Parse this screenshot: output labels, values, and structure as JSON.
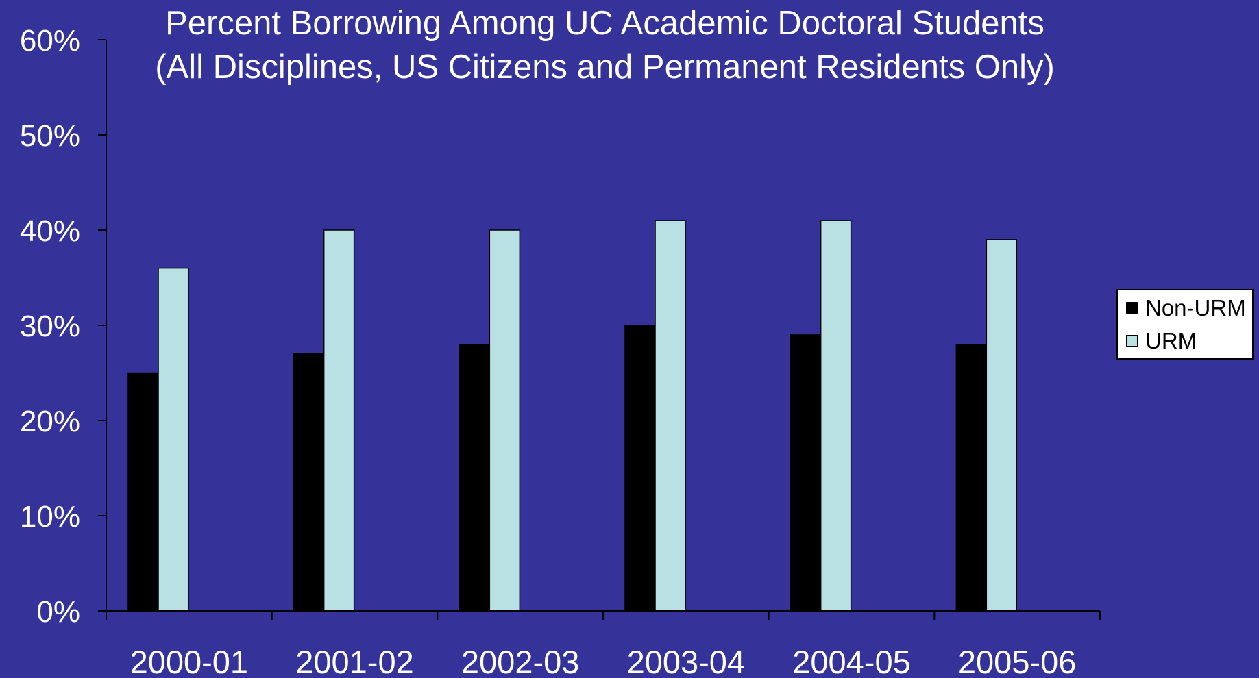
{
  "chart_data": {
    "type": "bar",
    "title": "Percent Borrowing Among UC Academic Doctoral Students",
    "subtitle": "(All Disciplines, US Citizens and Permanent Residents Only)",
    "xlabel": "",
    "ylabel": "",
    "categories": [
      "2000-01",
      "2001-02",
      "2002-03",
      "2003-04",
      "2004-05",
      "2005-06"
    ],
    "series": [
      {
        "name": "Non-URM",
        "color": "#000000",
        "values": [
          25,
          27,
          28,
          30,
          29,
          28
        ]
      },
      {
        "name": "URM",
        "color": "#b9e0e2",
        "values": [
          36,
          40,
          40,
          41,
          41,
          39
        ]
      }
    ],
    "ylim": [
      0,
      60
    ],
    "yticks": [
      0,
      10,
      20,
      30,
      40,
      50,
      60
    ],
    "ytick_labels": [
      "0%",
      "10%",
      "20%",
      "30%",
      "40%",
      "50%",
      "60%"
    ],
    "grid": false,
    "legend_position": "right",
    "background_color": "#353399",
    "text_color": "#ffffff"
  }
}
